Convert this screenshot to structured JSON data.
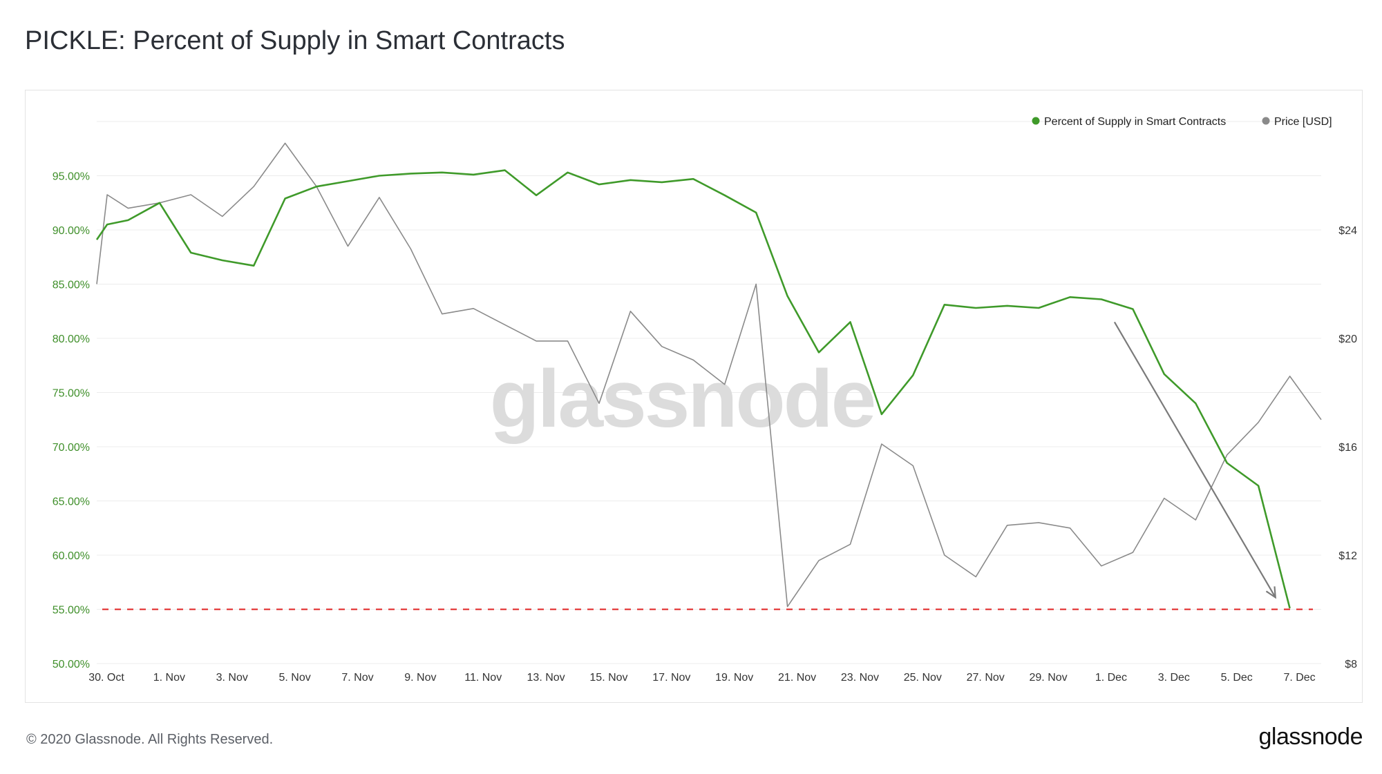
{
  "title": "PICKLE: Percent of Supply in Smart Contracts",
  "footer": {
    "copyright": "© 2020 Glassnode. All Rights Reserved.",
    "logo": "glassnode"
  },
  "watermark": "glassnode",
  "colors": {
    "supply": "#3f9a2a",
    "price": "#8a8a8a",
    "threshold": "#e02020",
    "grid": "#ececec"
  },
  "chart_data": {
    "type": "line",
    "title": "PICKLE: Percent of Supply in Smart Contracts",
    "x": [
      "2020-10-30",
      "2020-10-31",
      "2020-11-01",
      "2020-11-02",
      "2020-11-03",
      "2020-11-04",
      "2020-11-05",
      "2020-11-06",
      "2020-11-07",
      "2020-11-08",
      "2020-11-09",
      "2020-11-10",
      "2020-11-11",
      "2020-11-12",
      "2020-11-13",
      "2020-11-14",
      "2020-11-15",
      "2020-11-16",
      "2020-11-17",
      "2020-11-18",
      "2020-11-19",
      "2020-11-20",
      "2020-11-21",
      "2020-11-22",
      "2020-11-23",
      "2020-11-24",
      "2020-11-25",
      "2020-11-26",
      "2020-11-27",
      "2020-11-28",
      "2020-11-29",
      "2020-11-30",
      "2020-12-01",
      "2020-12-02",
      "2020-12-03",
      "2020-12-04",
      "2020-12-05",
      "2020-12-06",
      "2020-12-07",
      "2020-12-08"
    ],
    "x_ticks": [
      "30. Oct",
      "1. Nov",
      "3. Nov",
      "5. Nov",
      "7. Nov",
      "9. Nov",
      "11. Nov",
      "13. Nov",
      "15. Nov",
      "17. Nov",
      "19. Nov",
      "21. Nov",
      "23. Nov",
      "25. Nov",
      "27. Nov",
      "29. Nov",
      "1. Dec",
      "3. Dec",
      "5. Dec",
      "7. Dec"
    ],
    "y_left": {
      "ticks": [
        "50.00%",
        "55.00%",
        "60.00%",
        "65.00%",
        "70.00%",
        "75.00%",
        "80.00%",
        "85.00%",
        "90.00%",
        "95.00%"
      ],
      "min": 50,
      "max": 100
    },
    "y_right": {
      "ticks": [
        "$8",
        "$12",
        "$16",
        "$20",
        "$24"
      ],
      "tick_values": [
        8,
        12,
        16,
        20,
        24
      ],
      "min": 8,
      "max": 28
    },
    "legend": [
      "Percent of Supply in Smart Contracts",
      "Price [USD]"
    ],
    "legend_position": "top-right",
    "grid": true,
    "series": [
      {
        "name": "Percent of Supply in Smart Contracts",
        "axis": "left",
        "color": "#3f9a2a",
        "x": [
          "2020-10-30T00:00",
          "2020-10-30T08:00",
          "2020-10-31",
          "2020-11-01",
          "2020-11-02",
          "2020-11-03",
          "2020-11-04",
          "2020-11-05",
          "2020-11-06",
          "2020-11-07",
          "2020-11-08",
          "2020-11-09",
          "2020-11-10",
          "2020-11-11",
          "2020-11-12",
          "2020-11-13",
          "2020-11-14",
          "2020-11-15",
          "2020-11-16",
          "2020-11-17",
          "2020-11-18",
          "2020-11-19",
          "2020-11-20",
          "2020-11-21",
          "2020-11-22",
          "2020-11-23",
          "2020-11-24",
          "2020-11-25",
          "2020-11-26",
          "2020-11-27",
          "2020-11-28",
          "2020-11-29",
          "2020-11-30",
          "2020-12-01",
          "2020-12-02",
          "2020-12-03",
          "2020-12-04",
          "2020-12-05",
          "2020-12-06",
          "2020-12-07"
        ],
        "values": [
          89.1,
          90.5,
          90.9,
          92.5,
          87.9,
          87.2,
          86.7,
          92.9,
          94.0,
          94.5,
          95.0,
          95.2,
          95.3,
          95.1,
          95.5,
          93.2,
          95.3,
          94.2,
          94.6,
          94.4,
          94.7,
          93.2,
          91.6,
          83.9,
          78.7,
          81.5,
          73.0,
          76.6,
          83.1,
          82.8,
          83.0,
          82.8,
          83.8,
          83.6,
          82.7,
          76.7,
          74.0,
          68.5,
          66.4,
          55.1
        ]
      },
      {
        "name": "Price [USD]",
        "axis": "right",
        "color": "#8a8a8a",
        "x": [
          "2020-10-30T00:00",
          "2020-10-30T08:00",
          "2020-10-31",
          "2020-11-01",
          "2020-11-02",
          "2020-11-03",
          "2020-11-04",
          "2020-11-05",
          "2020-11-06",
          "2020-11-07",
          "2020-11-08",
          "2020-11-09",
          "2020-11-10",
          "2020-11-11",
          "2020-11-12",
          "2020-11-13",
          "2020-11-14",
          "2020-11-15",
          "2020-11-16",
          "2020-11-17",
          "2020-11-18",
          "2020-11-19",
          "2020-11-20",
          "2020-11-21",
          "2020-11-22",
          "2020-11-23",
          "2020-11-24",
          "2020-11-25",
          "2020-11-26",
          "2020-11-27",
          "2020-11-28",
          "2020-11-29",
          "2020-11-30",
          "2020-12-01",
          "2020-12-02",
          "2020-12-03",
          "2020-12-04",
          "2020-12-05",
          "2020-12-06",
          "2020-12-07",
          "2020-12-08"
        ],
        "values": [
          22.0,
          25.3,
          24.8,
          25.0,
          25.3,
          24.5,
          25.6,
          27.2,
          25.6,
          23.4,
          25.2,
          23.3,
          20.9,
          21.1,
          20.5,
          19.9,
          19.9,
          17.6,
          21.0,
          19.7,
          19.2,
          18.3,
          22.0,
          10.1,
          11.8,
          12.4,
          16.1,
          15.3,
          12.0,
          11.2,
          13.1,
          13.2,
          13.0,
          11.6,
          12.1,
          14.1,
          13.3,
          15.7,
          16.9,
          18.6,
          17.0
        ]
      }
    ],
    "annotations": [
      {
        "type": "horizontal-dashed-line",
        "axis": "left",
        "y": 55,
        "color": "#e02020"
      },
      {
        "type": "arrow",
        "color": "#7a7a7a",
        "from": {
          "x": "2020-12-01T10:00",
          "y_left": 81.5
        },
        "to": {
          "x": "2020-12-06T13:00",
          "y_left": 56.1
        }
      }
    ]
  }
}
